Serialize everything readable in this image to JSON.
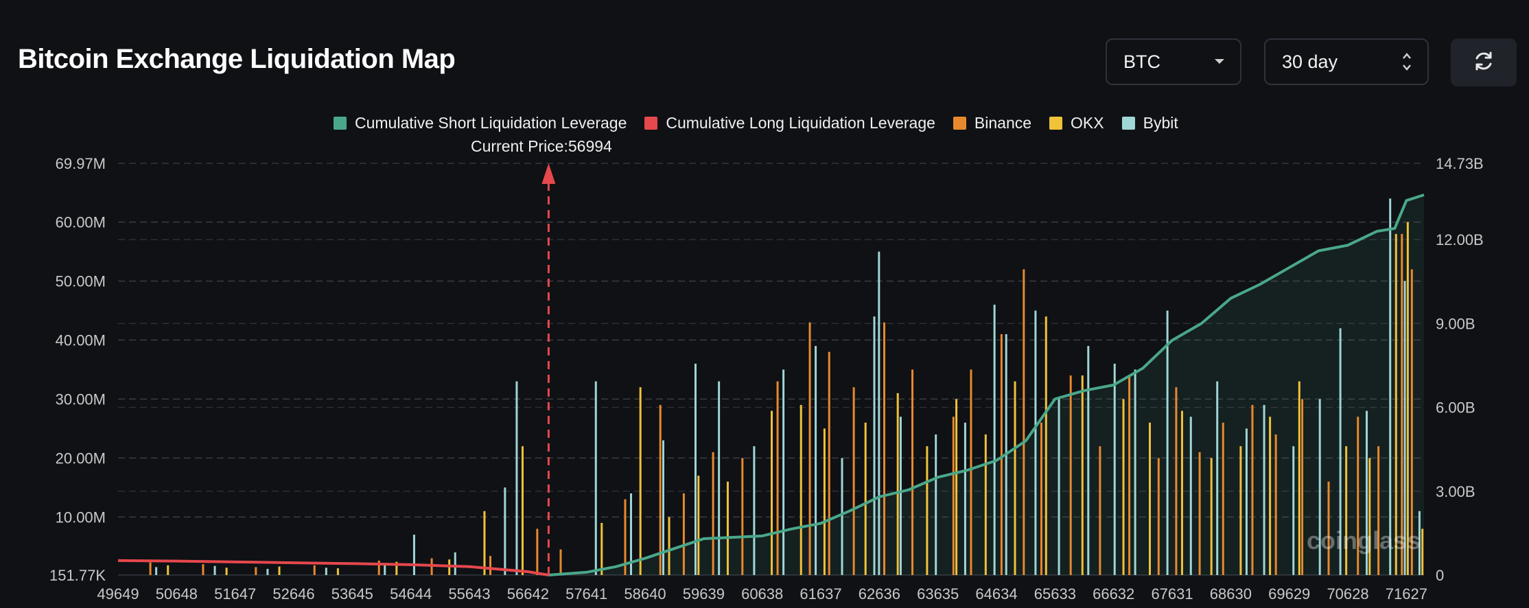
{
  "header": {
    "title": "Bitcoin Exchange Liquidation Map",
    "coin_select": "BTC",
    "period_select": "30 day"
  },
  "colors": {
    "short_cumulative": "#4aa88a",
    "long_cumulative": "#e5484d",
    "binance": "#e8892d",
    "okx": "#f0c23a",
    "bybit": "#9fd6d6",
    "background": "#0f1115"
  },
  "icons": {
    "refresh": "refresh-icon",
    "dropdown": "chevron-down-icon",
    "spinner": "up-down-chevron-icon"
  },
  "chart_data": {
    "type": "bar",
    "legend_placement": "top-center",
    "grid": true,
    "legend": [
      {
        "name": "Cumulative Short Liquidation Leverage",
        "color": "#4aa88a"
      },
      {
        "name": "Cumulative Long Liquidation Leverage",
        "color": "#e5484d"
      },
      {
        "name": "Binance",
        "color": "#e8892d"
      },
      {
        "name": "OKX",
        "color": "#f0c23a"
      },
      {
        "name": "Bybit",
        "color": "#9fd6d6"
      }
    ],
    "current_price_label": "Current Price:56994",
    "current_price": 56994,
    "x_ticks": [
      "49649",
      "50648",
      "51647",
      "52646",
      "53645",
      "54644",
      "55643",
      "56642",
      "57641",
      "58640",
      "59639",
      "60638",
      "61637",
      "62636",
      "63635",
      "64634",
      "65633",
      "66632",
      "67631",
      "68630",
      "69629",
      "70628",
      "71627"
    ],
    "x_range": [
      49649,
      71927
    ],
    "y_left_ticks": [
      "151.77K",
      "10.00M",
      "20.00M",
      "30.00M",
      "40.00M",
      "50.00M",
      "60.00M",
      "69.97M"
    ],
    "y_left_range": [
      151770,
      69970000
    ],
    "y_right_ticks": [
      "0",
      "3.00B",
      "6.00B",
      "9.00B",
      "12.00B",
      "14.73B"
    ],
    "y_right_range": [
      0,
      14730000000
    ],
    "series": [
      {
        "name": "Cumulative Short Liquidation Leverage",
        "kind": "line",
        "axis": "right",
        "x": [
          56994,
          57641,
          58140,
          58640,
          59139,
          59639,
          60138,
          60638,
          61137,
          61637,
          62136,
          62636,
          63135,
          63635,
          64134,
          64634,
          65133,
          65633,
          66132,
          66632,
          67131,
          67631,
          68130,
          68630,
          69129,
          69629,
          70128,
          70628,
          71127,
          71427,
          71627,
          71927
        ],
        "values": [
          0,
          100000000.0,
          300000000.0,
          600000000.0,
          950000000.0,
          1300000000.0,
          1350000000.0,
          1400000000.0,
          1650000000.0,
          1850000000.0,
          2300000000.0,
          2800000000.0,
          3050000000.0,
          3500000000.0,
          3750000000.0,
          4100000000.0,
          4800000000.0,
          6300000000.0,
          6600000000.0,
          6800000000.0,
          7400000000.0,
          8400000000.0,
          9000000000.0,
          9900000000.0,
          10400000000.0,
          11000000000.0,
          11600000000.0,
          11800000000.0,
          12300000000.0,
          12400000000.0,
          13400000000.0,
          13600000000.0
        ]
      },
      {
        "name": "Cumulative Long Liquidation Leverage",
        "kind": "line",
        "axis": "right",
        "x": [
          49649,
          50648,
          51647,
          52646,
          53645,
          54644,
          55643,
          56642,
          56994
        ],
        "values": [
          520000000.0,
          500000000.0,
          470000000.0,
          440000000.0,
          410000000.0,
          370000000.0,
          300000000.0,
          120000000.0,
          0
        ]
      },
      {
        "name": "Binance",
        "kind": "bar",
        "axis": "left",
        "x": [
          50200,
          51100,
          52000,
          53000,
          54100,
          55000,
          56000,
          56800,
          57200,
          58300,
          58900,
          59300,
          59800,
          60300,
          60900,
          61450,
          61780,
          62200,
          62720,
          63200,
          63900,
          64200,
          64720,
          65100,
          65400,
          65900,
          66400,
          66900,
          67400,
          67700,
          68100,
          68500,
          69000,
          69400,
          69850,
          70300,
          70800,
          71150,
          71550,
          71720
        ],
        "values": [
          2300000.0,
          2000000.0,
          1500000.0,
          1800000.0,
          2600000.0,
          3000000.0,
          3400000.0,
          8000000.0,
          4500000.0,
          13000000.0,
          29000000.0,
          14000000.0,
          21000000.0,
          20000000.0,
          33000000.0,
          43000000.0,
          38000000.0,
          32000000.0,
          43000000.0,
          35000000.0,
          27000000.0,
          35000000.0,
          41000000.0,
          52000000.0,
          26000000.0,
          34000000.0,
          22000000.0,
          34000000.0,
          20000000.0,
          32000000.0,
          21000000.0,
          26000000.0,
          29000000.0,
          24000000.0,
          30000000.0,
          16000000.0,
          27000000.0,
          22000000.0,
          58000000.0,
          52000000.0
        ]
      },
      {
        "name": "OKX",
        "kind": "bar",
        "axis": "left",
        "x": [
          50500,
          51500,
          52400,
          53400,
          54400,
          55300,
          55900,
          56550,
          57900,
          58560,
          59050,
          59550,
          60050,
          60800,
          61300,
          61700,
          62400,
          62950,
          63450,
          63950,
          64450,
          64950,
          65480,
          66100,
          66800,
          67250,
          67800,
          68300,
          68800,
          69300,
          69800,
          70600,
          71000,
          71450,
          71650,
          71900
        ],
        "values": [
          1800000.0,
          1400000.0,
          1600000.0,
          1300000.0,
          2400000.0,
          2800000.0,
          11000000.0,
          22000000.0,
          9000000.0,
          32000000.0,
          10000000.0,
          17000000.0,
          16000000.0,
          28000000.0,
          29000000.0,
          25000000.0,
          26000000.0,
          31000000.0,
          22000000.0,
          30000000.0,
          24000000.0,
          33000000.0,
          44000000.0,
          34000000.0,
          30000000.0,
          26000000.0,
          28000000.0,
          20000000.0,
          22000000.0,
          27000000.0,
          33000000.0,
          22000000.0,
          20000000.0,
          58000000.0,
          60000000.0,
          8000000.0
        ]
      },
      {
        "name": "Bybit",
        "kind": "bar",
        "axis": "left",
        "x": [
          50300,
          51300,
          52200,
          53200,
          54200,
          54700,
          55400,
          56250,
          56450,
          57800,
          58400,
          58950,
          59500,
          59900,
          60500,
          61000,
          61550,
          62000,
          62550,
          62630,
          63000,
          63600,
          64100,
          64600,
          64800,
          65300,
          65700,
          66200,
          66650,
          67000,
          67550,
          67950,
          68400,
          68900,
          69200,
          69700,
          70150,
          70500,
          70950,
          71350,
          71600,
          71850
        ],
        "values": [
          1500000.0,
          1700000.0,
          1200000.0,
          1400000.0,
          2000000.0,
          7000000.0,
          4000000.0,
          15000000.0,
          33000000.0,
          33000000.0,
          14000000.0,
          23000000.0,
          36000000.0,
          33000000.0,
          22000000.0,
          35000000.0,
          39000000.0,
          20000000.0,
          44000000.0,
          55000000.0,
          27000000.0,
          24000000.0,
          26000000.0,
          46000000.0,
          41000000.0,
          45000000.0,
          30000000.0,
          39000000.0,
          36000000.0,
          35000000.0,
          45000000.0,
          27000000.0,
          33000000.0,
          25000000.0,
          29000000.0,
          22000000.0,
          30000000.0,
          42000000.0,
          28000000.0,
          64000000.0,
          50000000.0,
          11000000.0
        ]
      }
    ]
  },
  "watermark": "coinglass"
}
